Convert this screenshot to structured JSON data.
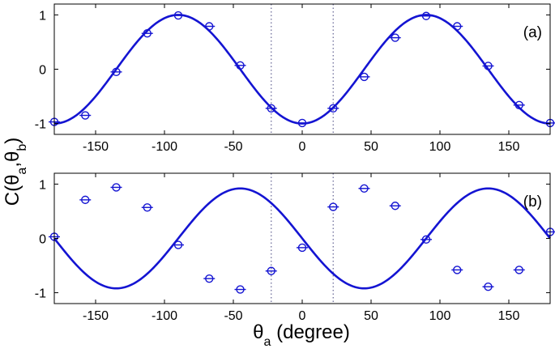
{
  "figure": {
    "ylabel": {
      "main": "C(θ",
      "sub_a": "a",
      "comma": ",θ",
      "sub_b": "b",
      "close": ")"
    },
    "xlabel": {
      "main": "θ",
      "sub": "a",
      "rest": " (degree)"
    }
  },
  "chart_data": [
    {
      "type": "line",
      "panel_label": "(a)",
      "xlim": [
        -180,
        180
      ],
      "ylim": [
        -1.2,
        1.2
      ],
      "xticks": [
        -150,
        -100,
        -50,
        0,
        50,
        100,
        150
      ],
      "yticks": [
        -1,
        0,
        1
      ],
      "ytick_labels": [
        "-1",
        "0",
        "1"
      ],
      "grid": false,
      "color": "#1414d2",
      "vlines": [
        -22.5,
        22.5
      ],
      "curve": {
        "model": "-cos(2x)",
        "amplitude": 1.0
      },
      "points": {
        "x": [
          -180,
          -157.5,
          -135,
          -112.5,
          -90,
          -67.5,
          -45,
          -22.5,
          0,
          22.5,
          45,
          67.5,
          90,
          112.5,
          135,
          157.5,
          180
        ],
        "y": [
          -0.97,
          -0.85,
          -0.05,
          0.66,
          0.99,
          0.79,
          0.07,
          -0.72,
          -0.99,
          -0.72,
          -0.14,
          0.58,
          0.98,
          0.79,
          0.06,
          -0.66,
          -0.99
        ]
      }
    },
    {
      "type": "line",
      "panel_label": "(b)",
      "xlim": [
        -180,
        180
      ],
      "ylim": [
        -1.2,
        1.2
      ],
      "xticks": [
        -150,
        -100,
        -50,
        0,
        50,
        100,
        150
      ],
      "yticks": [
        -1,
        0,
        1
      ],
      "ytick_labels": [
        "-1",
        "0",
        "1"
      ],
      "grid": false,
      "color": "#1414d2",
      "vlines": [
        -22.5,
        22.5
      ],
      "curve": {
        "model": "-0.92*sin(2x)",
        "amplitude": 0.92
      },
      "points": {
        "x": [
          -180,
          -157.5,
          -135,
          -112.5,
          -90,
          -67.5,
          -45,
          -22.5,
          0,
          22.5,
          45,
          67.5,
          90,
          112.5,
          135,
          157.5,
          180
        ],
        "y": [
          0.03,
          0.71,
          0.94,
          0.57,
          -0.12,
          -0.74,
          -0.94,
          -0.6,
          -0.17,
          0.58,
          0.92,
          0.6,
          -0.02,
          -0.58,
          -0.89,
          -0.58,
          0.12
        ]
      }
    }
  ]
}
